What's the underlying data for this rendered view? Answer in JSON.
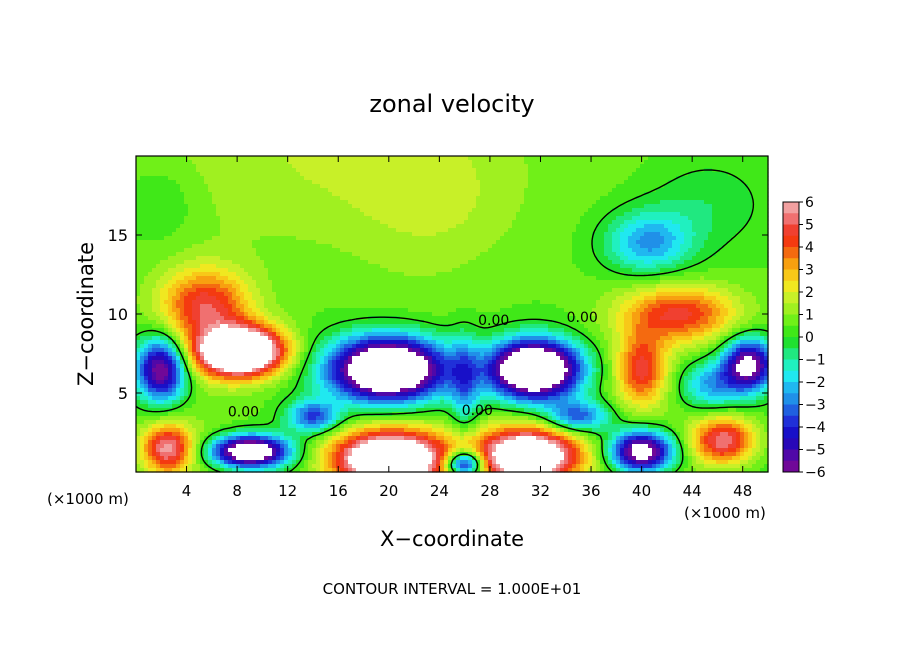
{
  "chart_data": {
    "type": "heatmap",
    "title": "zonal velocity",
    "xlabel": "X−coordinate",
    "ylabel": "Z−coordinate",
    "x_unit_left": "(×1000 m)",
    "x_unit_right": "(×1000 m)",
    "footer": "CONTOUR INTERVAL = 1.000E+01",
    "xlim": [
      0,
      50
    ],
    "ylim": [
      0,
      20
    ],
    "x_ticks": [
      "4",
      "8",
      "12",
      "16",
      "20",
      "24",
      "28",
      "32",
      "36",
      "40",
      "44",
      "48"
    ],
    "y_ticks": [
      "5",
      "10",
      "15"
    ],
    "colorbar": {
      "labels": [
        "6",
        "5",
        "4",
        "3",
        "2",
        "1",
        "0",
        "−1",
        "−2",
        "−3",
        "−4",
        "−5",
        "−6"
      ],
      "range": [
        -6,
        6
      ],
      "bins": [
        {
          "lo": 5.5,
          "color": "#f2a0a0"
        },
        {
          "lo": 5.0,
          "color": "#f07070"
        },
        {
          "lo": 4.5,
          "color": "#f04030"
        },
        {
          "lo": 4.0,
          "color": "#f43a10"
        },
        {
          "lo": 3.5,
          "color": "#f46a10"
        },
        {
          "lo": 3.0,
          "color": "#f8a010"
        },
        {
          "lo": 2.5,
          "color": "#f8c818"
        },
        {
          "lo": 2.0,
          "color": "#f0e820"
        },
        {
          "lo": 1.5,
          "color": "#c8f028"
        },
        {
          "lo": 1.0,
          "color": "#a0f020"
        },
        {
          "lo": 0.5,
          "color": "#70f018"
        },
        {
          "lo": 0.0,
          "color": "#40e818"
        },
        {
          "lo": -0.5,
          "color": "#20e030"
        },
        {
          "lo": -1.0,
          "color": "#20e880"
        },
        {
          "lo": -1.5,
          "color": "#20f0c0"
        },
        {
          "lo": -2.0,
          "color": "#20e8f0"
        },
        {
          "lo": -2.5,
          "color": "#20b8f0"
        },
        {
          "lo": -3.0,
          "color": "#2090e8"
        },
        {
          "lo": -3.5,
          "color": "#2060e0"
        },
        {
          "lo": -4.0,
          "color": "#2030d8"
        },
        {
          "lo": -4.5,
          "color": "#1810c8"
        },
        {
          "lo": -5.0,
          "color": "#2808b8"
        },
        {
          "lo": -5.5,
          "color": "#5008a8"
        },
        {
          "lo": -6.0,
          "color": "#700898"
        }
      ]
    },
    "contour_labels": [
      {
        "text": "0.00",
        "x": 28.3,
        "z": 9.3
      },
      {
        "text": "0.00",
        "x": 35.3,
        "z": 9.5
      },
      {
        "text": "0.00",
        "x": 8.5,
        "z": 3.5
      },
      {
        "text": "0.00",
        "x": 27.0,
        "z": 3.6
      }
    ],
    "field_features": [
      {
        "x": 16.0,
        "z": 20.0,
        "sx": 14.0,
        "sz": 6.0,
        "a": 1.0
      },
      {
        "x": 24.0,
        "z": 17.0,
        "sx": 6.0,
        "sz": 4.0,
        "a": 0.6
      },
      {
        "x": 40.5,
        "z": 14.5,
        "sx": 3.5,
        "sz": 2.0,
        "a": -3.2
      },
      {
        "x": 45.0,
        "z": 17.0,
        "sx": 5.0,
        "sz": 3.0,
        "a": -1.0
      },
      {
        "x": 2.0,
        "z": 17.0,
        "sx": 3.0,
        "sz": 2.5,
        "a": -0.8
      },
      {
        "x": 5.5,
        "z": 10.5,
        "sx": 3.5,
        "sz": 2.3,
        "a": 4.2
      },
      {
        "x": 9.0,
        "z": 8.0,
        "sx": 3.0,
        "sz": 1.5,
        "a": 2.5
      },
      {
        "x": 43.0,
        "z": 10.0,
        "sx": 4.5,
        "sz": 1.8,
        "a": 4.0
      },
      {
        "x": 40.0,
        "z": 6.5,
        "sx": 2.0,
        "sz": 2.2,
        "a": 4.0
      },
      {
        "x": 8.0,
        "z": 7.5,
        "sx": 3.5,
        "sz": 1.5,
        "a": 8.0
      },
      {
        "x": 20.0,
        "z": 6.5,
        "sx": 4.5,
        "sz": 2.0,
        "a": -11.0
      },
      {
        "x": 31.5,
        "z": 6.5,
        "sx": 3.5,
        "sz": 1.8,
        "a": -11.0
      },
      {
        "x": 2.0,
        "z": 6.5,
        "sx": 2.0,
        "sz": 2.0,
        "a": -7.0
      },
      {
        "x": 48.5,
        "z": 6.8,
        "sx": 2.0,
        "sz": 1.6,
        "a": -7.0
      },
      {
        "x": 45.5,
        "z": 5.5,
        "sx": 2.5,
        "sz": 1.5,
        "a": -3.0
      },
      {
        "x": 26.0,
        "z": 5.5,
        "sx": 1.2,
        "sz": 3.0,
        "a": -2.5
      },
      {
        "x": 2.5,
        "z": 1.5,
        "sx": 2.0,
        "sz": 1.5,
        "a": 5.0
      },
      {
        "x": 9.0,
        "z": 1.3,
        "sx": 3.0,
        "sz": 1.0,
        "a": -9.0
      },
      {
        "x": 20.0,
        "z": 0.8,
        "sx": 4.5,
        "sz": 1.8,
        "a": 9.0
      },
      {
        "x": 31.0,
        "z": 1.0,
        "sx": 4.0,
        "sz": 1.8,
        "a": 9.0
      },
      {
        "x": 26.0,
        "z": 0.5,
        "sx": 1.5,
        "sz": 0.8,
        "a": -7.0
      },
      {
        "x": 40.0,
        "z": 1.3,
        "sx": 2.5,
        "sz": 1.3,
        "a": -8.0
      },
      {
        "x": 46.5,
        "z": 2.0,
        "sx": 2.5,
        "sz": 1.5,
        "a": 5.0
      },
      {
        "x": 14.0,
        "z": 3.5,
        "sx": 2.0,
        "sz": 1.0,
        "a": -4.0
      },
      {
        "x": 35.0,
        "z": 3.5,
        "sx": 2.5,
        "sz": 1.0,
        "a": -4.0
      }
    ]
  }
}
